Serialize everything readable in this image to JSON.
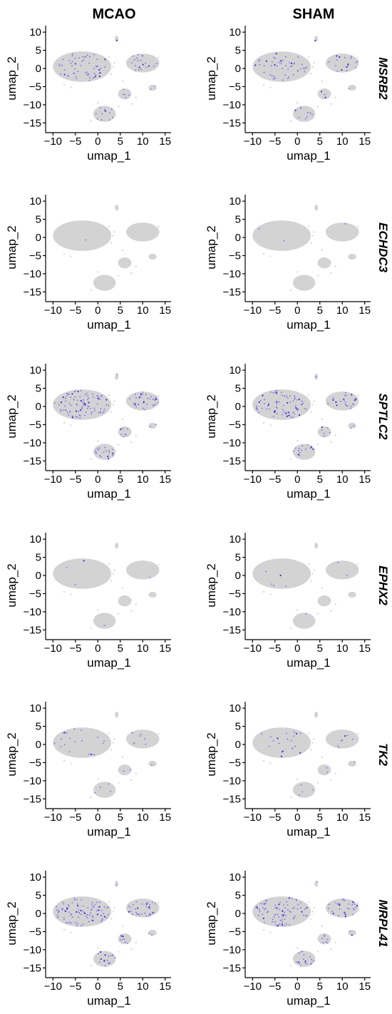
{
  "column_titles": [
    "MCAO",
    "SHAM"
  ],
  "genes": [
    "MSRB2",
    "ECHDC3",
    "SPTLC2",
    "EPHX2",
    "TK2",
    "MRPL41"
  ],
  "colors": {
    "background_cells": "#d3d3d3",
    "expressing_cells": "#7b68ee",
    "high_expression": "#3b2bd6"
  },
  "chart_data": {
    "type": "scatter",
    "subtype": "umap-feature-plot-grid",
    "xlabel": "umap_1",
    "ylabel": "umap_2",
    "xlim": [
      -11,
      16
    ],
    "ylim": [
      -16.5,
      11
    ],
    "xticks": [
      -10,
      -5,
      0,
      5,
      10,
      15
    ],
    "xtick_labels": [
      "−10",
      "−5",
      "0",
      "5",
      "10",
      "15"
    ],
    "yticks": [
      -15,
      -10,
      -5,
      0,
      5,
      10
    ],
    "ytick_labels": [
      "−15",
      "−10",
      "−5",
      "0",
      "5",
      "10"
    ],
    "grid": false,
    "clusters": [
      {
        "name": "main",
        "center": [
          -3.5,
          0.5
        ],
        "rx": 6.5,
        "ry": 4.2
      },
      {
        "name": "right",
        "center": [
          10,
          1.5
        ],
        "rx": 3.7,
        "ry": 2.6
      },
      {
        "name": "mid-small",
        "center": [
          6,
          -7
        ],
        "rx": 1.5,
        "ry": 1.5
      },
      {
        "name": "bottom",
        "center": [
          1.5,
          -12.5
        ],
        "rx": 2.5,
        "ry": 2.2
      },
      {
        "name": "right-small",
        "center": [
          12.2,
          -5.3
        ],
        "rx": 0.9,
        "ry": 0.8
      },
      {
        "name": "top-speck",
        "center": [
          4.2,
          8.2
        ],
        "rx": 0.4,
        "ry": 0.8
      }
    ],
    "panels": [
      {
        "gene": "MSRB2",
        "condition": "MCAO",
        "expression_density": 0.35
      },
      {
        "gene": "MSRB2",
        "condition": "SHAM",
        "expression_density": 0.3
      },
      {
        "gene": "ECHDC3",
        "condition": "MCAO",
        "expression_density": 0.005
      },
      {
        "gene": "ECHDC3",
        "condition": "SHAM",
        "expression_density": 0.01
      },
      {
        "gene": "SPTLC2",
        "condition": "MCAO",
        "expression_density": 0.55
      },
      {
        "gene": "SPTLC2",
        "condition": "SHAM",
        "expression_density": 0.45
      },
      {
        "gene": "EPHX2",
        "condition": "MCAO",
        "expression_density": 0.02
      },
      {
        "gene": "EPHX2",
        "condition": "SHAM",
        "expression_density": 0.03
      },
      {
        "gene": "TK2",
        "condition": "MCAO",
        "expression_density": 0.12
      },
      {
        "gene": "TK2",
        "condition": "SHAM",
        "expression_density": 0.12
      },
      {
        "gene": "MRPL41",
        "condition": "MCAO",
        "expression_density": 0.55
      },
      {
        "gene": "MRPL41",
        "condition": "SHAM",
        "expression_density": 0.5
      }
    ]
  }
}
